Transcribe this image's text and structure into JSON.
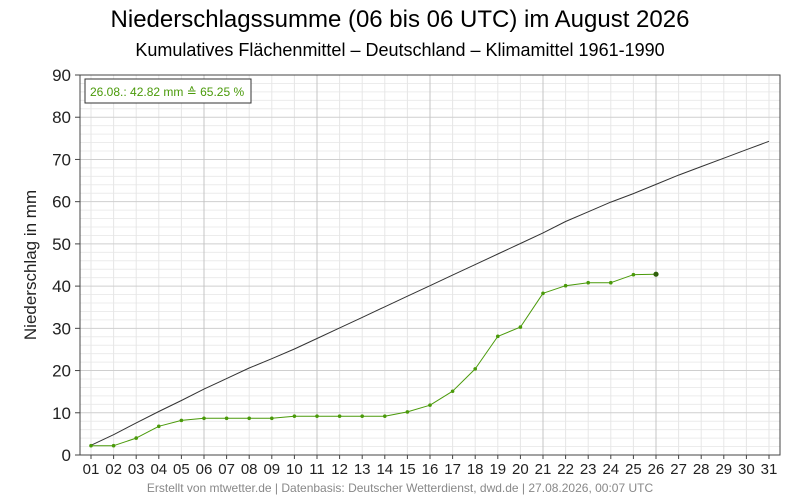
{
  "chart_data": {
    "type": "line",
    "title": "Niederschlagssumme (06 bis 06 UTC) im August 2026",
    "subtitle": "Kumulatives Flächenmittel – Deutschland – Klimamittel 1961-1990",
    "ylabel": "Niederschlag in mm",
    "xlabel": "",
    "ylim": [
      0,
      90
    ],
    "xlim": [
      1,
      31
    ],
    "grid": true,
    "categories": [
      "01",
      "02",
      "03",
      "04",
      "05",
      "06",
      "07",
      "08",
      "09",
      "10",
      "11",
      "12",
      "13",
      "14",
      "15",
      "16",
      "17",
      "18",
      "19",
      "20",
      "21",
      "22",
      "23",
      "24",
      "25",
      "26",
      "27",
      "28",
      "29",
      "30",
      "31"
    ],
    "y_ticks": [
      0,
      10,
      20,
      30,
      40,
      50,
      60,
      70,
      80,
      90
    ],
    "series": [
      {
        "name": "",
        "role": "climate-mean",
        "color": "#333333",
        "x": [
          1,
          2,
          3,
          4,
          5,
          6,
          7,
          8,
          9,
          10,
          11,
          12,
          13,
          14,
          15,
          16,
          17,
          18,
          19,
          20,
          21,
          22,
          23,
          24,
          25,
          26,
          27,
          28,
          29,
          30,
          31
        ],
        "values": [
          2.3,
          4.8,
          7.6,
          10.3,
          12.9,
          15.6,
          18.1,
          20.6,
          22.8,
          25.1,
          27.6,
          30.1,
          32.6,
          35.1,
          37.6,
          40.1,
          42.6,
          45.1,
          47.6,
          50.1,
          52.6,
          55.3,
          57.6,
          59.9,
          61.9,
          64.1,
          66.3,
          68.3,
          70.3,
          72.3,
          74.3
        ]
      },
      {
        "name": "",
        "role": "observed-2026",
        "color": "#4a9a0a",
        "x": [
          1,
          2,
          3,
          4,
          5,
          6,
          7,
          8,
          9,
          10,
          11,
          12,
          13,
          14,
          15,
          16,
          17,
          18,
          19,
          20,
          21,
          22,
          23,
          24,
          25,
          26
        ],
        "values": [
          2.2,
          2.2,
          4.0,
          6.8,
          8.2,
          8.7,
          8.7,
          8.7,
          8.7,
          9.2,
          9.2,
          9.2,
          9.2,
          9.2,
          10.2,
          11.8,
          15.1,
          20.4,
          28.1,
          30.3,
          38.3,
          40.1,
          40.8,
          40.8,
          42.7,
          42.82
        ]
      }
    ],
    "annotation": {
      "text": "26.08.: 42.82 mm ≙ 65.25 %",
      "color": "#4a9a0a",
      "placement": "top-left"
    }
  },
  "footer": "Erstellt von mtwetter.de | Datenbasis: Deutscher Wetterdienst, dwd.de | 27.08.2026, 00:07 UTC"
}
